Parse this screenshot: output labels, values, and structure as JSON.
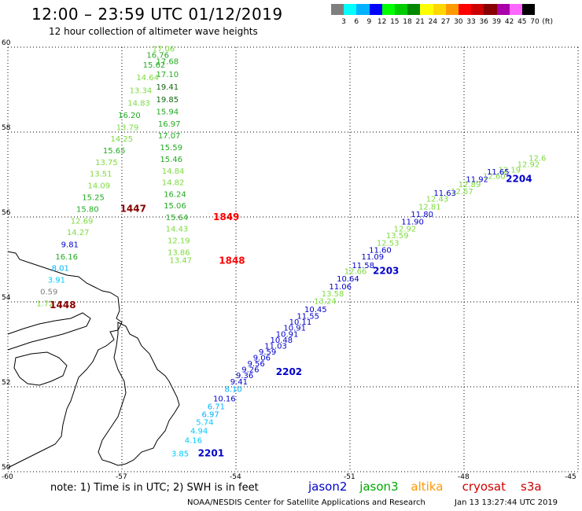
{
  "title": "12:00 – 23:59 UTC 01/12/2019",
  "subtitle": "12 hour collection of altimeter wave heights",
  "legend": {
    "unit": "(ft)",
    "bins": [
      {
        "label": "3",
        "color": "#7f7f7f"
      },
      {
        "label": "6",
        "color": "#00ffff"
      },
      {
        "label": "9",
        "color": "#00b2ff"
      },
      {
        "label": "12",
        "color": "#0000ff"
      },
      {
        "label": "15",
        "color": "#00ff00"
      },
      {
        "label": "18",
        "color": "#00cc00"
      },
      {
        "label": "21",
        "color": "#008800"
      },
      {
        "label": "24",
        "color": "#ffff00"
      },
      {
        "label": "27",
        "color": "#ffd700"
      },
      {
        "label": "30",
        "color": "#ff9900"
      },
      {
        "label": "33",
        "color": "#ff0000"
      },
      {
        "label": "36",
        "color": "#cc0000"
      },
      {
        "label": "39",
        "color": "#880000"
      },
      {
        "label": "42",
        "color": "#aa00aa"
      },
      {
        "label": "45",
        "color": "#ff66ff"
      },
      {
        "label": "70",
        "color": "#000000"
      }
    ]
  },
  "axes": {
    "lat_labels": [
      "60",
      "58",
      "56",
      "54",
      "52",
      "50"
    ],
    "lon_labels": [
      "-60",
      "-57",
      "-54",
      "-51",
      "-48",
      "-45"
    ]
  },
  "tracks": [
    {
      "id": "north",
      "points": [
        {
          "lat": 59.9,
          "lon": -56.2,
          "v": "17.06",
          "c": "#7ddb3f"
        },
        {
          "lat": 59.75,
          "lon": -56.35,
          "v": "16.76",
          "c": "#22aa22"
        },
        {
          "lat": 59.6,
          "lon": -56.1,
          "v": "17.68",
          "c": "#22aa22"
        },
        {
          "lat": 59.52,
          "lon": -56.45,
          "v": "15.62",
          "c": "#22aa22"
        },
        {
          "lat": 59.3,
          "lon": -56.1,
          "v": "17.10",
          "c": "#22aa22"
        },
        {
          "lat": 59.22,
          "lon": -56.62,
          "v": "14.64",
          "c": "#7ddb3f"
        },
        {
          "lat": 59.0,
          "lon": -56.1,
          "v": "19.41",
          "c": "#116611"
        },
        {
          "lat": 58.92,
          "lon": -56.8,
          "v": "13.34",
          "c": "#7ddb3f"
        },
        {
          "lat": 58.7,
          "lon": -56.1,
          "v": "19.85",
          "c": "#116611"
        },
        {
          "lat": 58.62,
          "lon": -56.85,
          "v": "14.83",
          "c": "#7ddb3f"
        },
        {
          "lat": 58.42,
          "lon": -56.1,
          "v": "15.94",
          "c": "#22aa22"
        },
        {
          "lat": 58.33,
          "lon": -57.1,
          "v": "16.20",
          "c": "#22aa22"
        },
        {
          "lat": 58.13,
          "lon": -56.05,
          "v": "16.97",
          "c": "#22aa22"
        },
        {
          "lat": 58.05,
          "lon": -57.15,
          "v": "13.79",
          "c": "#7ddb3f"
        },
        {
          "lat": 57.85,
          "lon": -56.05,
          "v": "17.07",
          "c": "#22aa22"
        },
        {
          "lat": 57.78,
          "lon": -57.3,
          "v": "14.25",
          "c": "#7ddb3f"
        },
        {
          "lat": 57.57,
          "lon": -56.0,
          "v": "15.59",
          "c": "#22aa22"
        },
        {
          "lat": 57.5,
          "lon": -57.5,
          "v": "15.65",
          "c": "#22aa22"
        },
        {
          "lat": 57.3,
          "lon": -56.0,
          "v": "15.46",
          "c": "#22aa22"
        },
        {
          "lat": 57.22,
          "lon": -57.7,
          "v": "13.75",
          "c": "#7ddb3f"
        },
        {
          "lat": 57.02,
          "lon": -55.95,
          "v": "14.84",
          "c": "#7ddb3f"
        },
        {
          "lat": 56.95,
          "lon": -57.85,
          "v": "13.51",
          "c": "#7ddb3f"
        },
        {
          "lat": 56.75,
          "lon": -55.95,
          "v": "14.82",
          "c": "#7ddb3f"
        },
        {
          "lat": 56.68,
          "lon": -57.9,
          "v": "14.09",
          "c": "#7ddb3f"
        },
        {
          "lat": 56.47,
          "lon": -55.9,
          "v": "16.24",
          "c": "#22aa22"
        },
        {
          "lat": 56.4,
          "lon": -58.05,
          "v": "15.25",
          "c": "#22aa22"
        },
        {
          "lat": 56.2,
          "lon": -55.9,
          "v": "15.06",
          "c": "#22aa22"
        },
        {
          "lat": 56.12,
          "lon": -58.2,
          "v": "15.80",
          "c": "#22aa22"
        },
        {
          "lat": 56.12,
          "lon": -57.05,
          "v": "1447",
          "c": "#880000",
          "big": true
        },
        {
          "lat": 55.93,
          "lon": -55.85,
          "v": "15.64",
          "c": "#22aa22"
        },
        {
          "lat": 55.93,
          "lon": -54.6,
          "v": "1849",
          "c": "#ff0000",
          "big": true
        },
        {
          "lat": 55.84,
          "lon": -58.35,
          "v": "12.69",
          "c": "#7ddb3f"
        },
        {
          "lat": 55.66,
          "lon": -55.85,
          "v": "14.43",
          "c": "#7ddb3f"
        },
        {
          "lat": 55.57,
          "lon": -58.45,
          "v": "14.27",
          "c": "#7ddb3f"
        },
        {
          "lat": 55.38,
          "lon": -55.8,
          "v": "12.19",
          "c": "#7ddb3f"
        },
        {
          "lat": 55.29,
          "lon": -58.6,
          "v": "9.81",
          "c": "#0000cc"
        },
        {
          "lat": 55.1,
          "lon": -55.8,
          "v": "13.86",
          "c": "#7ddb3f"
        },
        {
          "lat": 55.0,
          "lon": -58.75,
          "v": "16.16",
          "c": "#22aa22"
        },
        {
          "lat": 54.92,
          "lon": -55.75,
          "v": "13.47",
          "c": "#7ddb3f"
        },
        {
          "lat": 54.9,
          "lon": -54.45,
          "v": "1848",
          "c": "#ff0000",
          "big": true
        },
        {
          "lat": 54.73,
          "lon": -58.85,
          "v": "8.01",
          "c": "#00b2ff"
        },
        {
          "lat": 54.45,
          "lon": -58.95,
          "v": "3.91",
          "c": "#00c8ff"
        },
        {
          "lat": 54.18,
          "lon": -59.15,
          "v": "0.59",
          "c": "#7f7f7f"
        },
        {
          "lat": 53.9,
          "lon": -59.25,
          "v": "1.72",
          "c": "#7ddb3f"
        },
        {
          "lat": 53.85,
          "lon": -58.9,
          "v": "1448",
          "c": "#880000",
          "big": true
        }
      ]
    },
    {
      "id": "south",
      "points": [
        {
          "lat": 50.36,
          "lon": -55.7,
          "v": "3.85",
          "c": "#00c8ff"
        },
        {
          "lat": 50.36,
          "lon": -55.0,
          "v": "2201",
          "c": "#0000cc",
          "big": true
        },
        {
          "lat": 50.68,
          "lon": -55.35,
          "v": "4.16",
          "c": "#00c8ff"
        },
        {
          "lat": 50.9,
          "lon": -55.2,
          "v": "4.94",
          "c": "#00c8ff"
        },
        {
          "lat": 51.1,
          "lon": -55.05,
          "v": "5.74",
          "c": "#00c8ff"
        },
        {
          "lat": 51.29,
          "lon": -54.9,
          "v": "6.97",
          "c": "#00b2ff"
        },
        {
          "lat": 51.47,
          "lon": -54.75,
          "v": "6.71",
          "c": "#00b2ff"
        },
        {
          "lat": 51.66,
          "lon": -54.6,
          "v": "10.16",
          "c": "#0000cc"
        },
        {
          "lat": 51.88,
          "lon": -54.3,
          "v": "8.10",
          "c": "#00b2ff"
        },
        {
          "lat": 52.06,
          "lon": -54.15,
          "v": "9.41",
          "c": "#0000cc"
        },
        {
          "lat": 52.2,
          "lon": -54.0,
          "v": "9.36",
          "c": "#0000cc"
        },
        {
          "lat": 52.34,
          "lon": -53.85,
          "v": "9.26",
          "c": "#0000cc"
        },
        {
          "lat": 52.48,
          "lon": -53.7,
          "v": "9.56",
          "c": "#0000cc"
        },
        {
          "lat": 52.62,
          "lon": -53.55,
          "v": "9.06",
          "c": "#0000cc"
        },
        {
          "lat": 52.76,
          "lon": -53.4,
          "v": "9.59",
          "c": "#0000cc"
        },
        {
          "lat": 52.28,
          "lon": -52.95,
          "v": "2202",
          "c": "#0000cc",
          "big": true
        },
        {
          "lat": 52.9,
          "lon": -53.25,
          "v": "11.03",
          "c": "#0000cc"
        },
        {
          "lat": 53.04,
          "lon": -53.1,
          "v": "10.48",
          "c": "#0000cc"
        },
        {
          "lat": 53.18,
          "lon": -52.95,
          "v": "10.91",
          "c": "#0000cc"
        },
        {
          "lat": 53.32,
          "lon": -52.75,
          "v": "10.91",
          "c": "#0000cc"
        },
        {
          "lat": 53.46,
          "lon": -52.6,
          "v": "10.11",
          "c": "#0000cc"
        },
        {
          "lat": 53.6,
          "lon": -52.4,
          "v": "11.55",
          "c": "#0000cc"
        },
        {
          "lat": 53.76,
          "lon": -52.2,
          "v": "10.45",
          "c": "#0000cc"
        },
        {
          "lat": 53.95,
          "lon": -51.95,
          "v": "13.24",
          "c": "#7ddb3f"
        },
        {
          "lat": 54.13,
          "lon": -51.75,
          "v": "13.58",
          "c": "#7ddb3f"
        },
        {
          "lat": 54.3,
          "lon": -51.55,
          "v": "11.06",
          "c": "#0000cc"
        },
        {
          "lat": 54.48,
          "lon": -51.35,
          "v": "10.64",
          "c": "#0000cc"
        },
        {
          "lat": 54.66,
          "lon": -51.15,
          "v": "12.66",
          "c": "#7ddb3f"
        },
        {
          "lat": 54.8,
          "lon": -50.95,
          "v": "11.58",
          "c": "#0000cc"
        },
        {
          "lat": 54.66,
          "lon": -50.4,
          "v": "2203",
          "c": "#0000cc",
          "big": true
        },
        {
          "lat": 55.0,
          "lon": -50.7,
          "v": "11.09",
          "c": "#0000cc"
        },
        {
          "lat": 55.16,
          "lon": -50.5,
          "v": "11.60",
          "c": "#0000cc"
        },
        {
          "lat": 55.32,
          "lon": -50.3,
          "v": "12.53",
          "c": "#7ddb3f"
        },
        {
          "lat": 55.5,
          "lon": -50.05,
          "v": "13.59",
          "c": "#7ddb3f"
        },
        {
          "lat": 55.66,
          "lon": -49.85,
          "v": "12.92",
          "c": "#7ddb3f"
        },
        {
          "lat": 55.82,
          "lon": -49.65,
          "v": "11.90",
          "c": "#0000cc"
        },
        {
          "lat": 56.0,
          "lon": -49.4,
          "v": "11.80",
          "c": "#0000cc"
        },
        {
          "lat": 56.18,
          "lon": -49.2,
          "v": "12.81",
          "c": "#7ddb3f"
        },
        {
          "lat": 56.36,
          "lon": -49.0,
          "v": "12.43",
          "c": "#7ddb3f"
        },
        {
          "lat": 56.5,
          "lon": -48.8,
          "v": "11.63",
          "c": "#0000cc"
        },
        {
          "lat": 56.54,
          "lon": -48.35,
          "v": "12.57",
          "c": "#7ddb3f"
        },
        {
          "lat": 56.7,
          "lon": -48.15,
          "v": "12.89",
          "c": "#7ddb3f"
        },
        {
          "lat": 56.82,
          "lon": -47.95,
          "v": "11.92",
          "c": "#0000cc"
        },
        {
          "lat": 56.9,
          "lon": -47.5,
          "v": "12.60",
          "c": "#7ddb3f"
        },
        {
          "lat": 57.05,
          "lon": -47.1,
          "v": "12.19",
          "c": "#7ddb3f"
        },
        {
          "lat": 57.0,
          "lon": -47.4,
          "v": "11.65",
          "c": "#0000cc"
        },
        {
          "lat": 56.82,
          "lon": -46.9,
          "v": "2204",
          "c": "#0000cc",
          "big": true
        },
        {
          "lat": 57.18,
          "lon": -46.6,
          "v": "12.92",
          "c": "#7ddb3f"
        },
        {
          "lat": 57.32,
          "lon": -46.3,
          "v": "12.6",
          "c": "#7ddb3f"
        }
      ]
    }
  ],
  "note": "note:  1) Time is in UTC;  2) SWH is in feet",
  "satellites": [
    {
      "name": "jason2",
      "color": "#0000cc"
    },
    {
      "name": "jason3",
      "color": "#00aa00"
    },
    {
      "name": "altika",
      "color": "#ff9900"
    },
    {
      "name": "cryosat",
      "color": "#cc0000"
    },
    {
      "name": "s3a",
      "color": "#cc0000"
    }
  ],
  "credit": "NOAA/NESDIS Center for Satellite Applications and Research",
  "generated": "Jan 13 13:27:44 UTC 2019"
}
